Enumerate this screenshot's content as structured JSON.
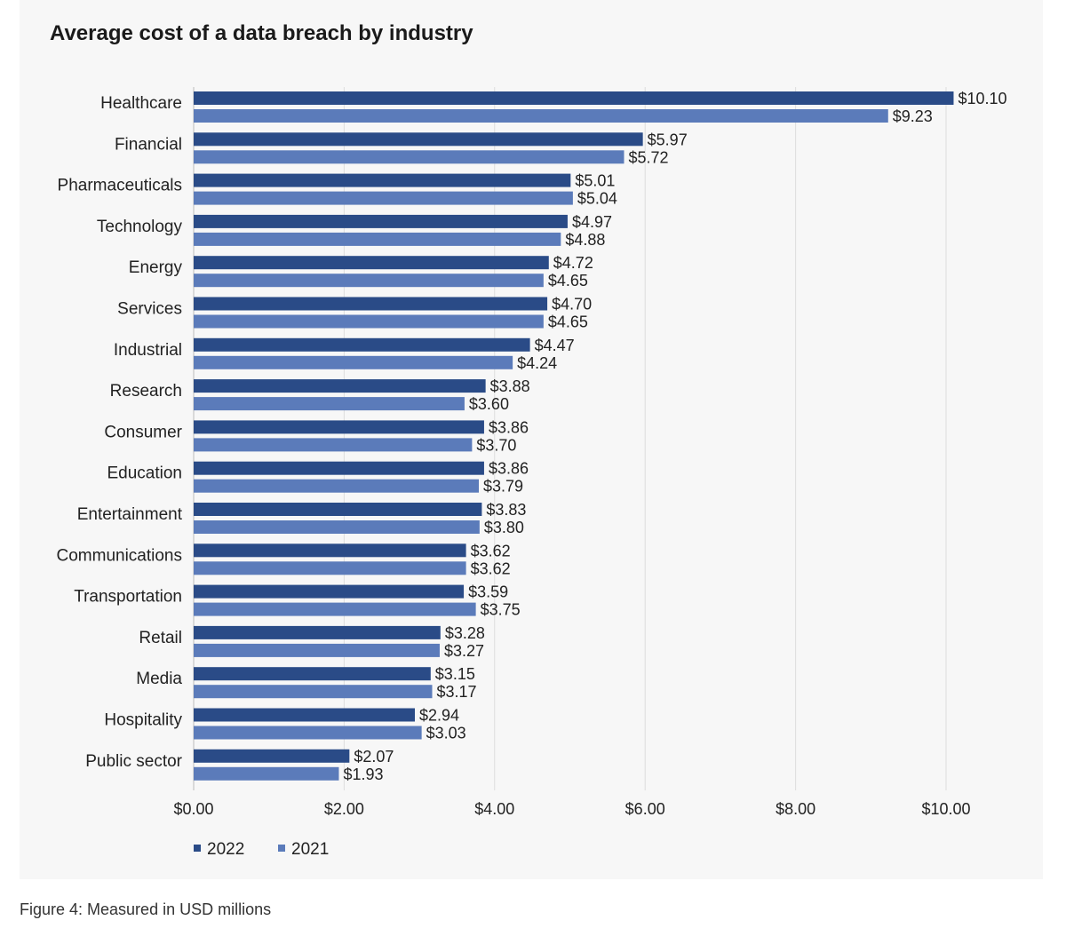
{
  "chart_data": {
    "type": "bar",
    "orientation": "horizontal",
    "title": "Average cost of a data breach by industry",
    "categories": [
      "Healthcare",
      "Financial",
      "Pharmaceuticals",
      "Technology",
      "Energy",
      "Services",
      "Industrial",
      "Research",
      "Consumer",
      "Education",
      "Entertainment",
      "Communications",
      "Transportation",
      "Retail",
      "Media",
      "Hospitality",
      "Public sector"
    ],
    "series": [
      {
        "name": "2022",
        "color": "#2a4b87",
        "values": [
          10.1,
          5.97,
          5.01,
          4.97,
          4.72,
          4.7,
          4.47,
          3.88,
          3.86,
          3.86,
          3.83,
          3.62,
          3.59,
          3.28,
          3.15,
          2.94,
          2.07
        ],
        "labels": [
          "$10.10",
          "$5.97",
          "$5.01",
          "$4.97",
          "$4.72",
          "$4.70",
          "$4.47",
          "$3.88",
          "$3.86",
          "$3.86",
          "$3.83",
          "$3.62",
          "$3.59",
          "$3.28",
          "$3.15",
          "$2.94",
          "$2.07"
        ]
      },
      {
        "name": "2021",
        "color": "#5b7bba",
        "values": [
          9.23,
          5.72,
          5.04,
          4.88,
          4.65,
          4.65,
          4.24,
          3.6,
          3.7,
          3.79,
          3.8,
          3.62,
          3.75,
          3.27,
          3.17,
          3.03,
          1.93
        ],
        "labels": [
          "$9.23",
          "$5.72",
          "$5.04",
          "$4.88",
          "$4.65",
          "$4.65",
          "$4.24",
          "$3.60",
          "$3.70",
          "$3.79",
          "$3.80",
          "$3.62",
          "$3.75",
          "$3.27",
          "$3.17",
          "$3.03",
          "$1.93"
        ]
      }
    ],
    "xlim": [
      0,
      10
    ],
    "xticks": [
      0,
      2,
      4,
      6,
      8,
      10
    ],
    "xtick_labels": [
      "$0.00",
      "$2.00",
      "$4.00",
      "$6.00",
      "$8.00",
      "$10.00"
    ],
    "grid": true,
    "legend_position": "bottom-left"
  },
  "caption": "Figure 4: Measured in USD millions",
  "colors": {
    "background": "#f7f7f7",
    "grid": "#dddddd"
  }
}
